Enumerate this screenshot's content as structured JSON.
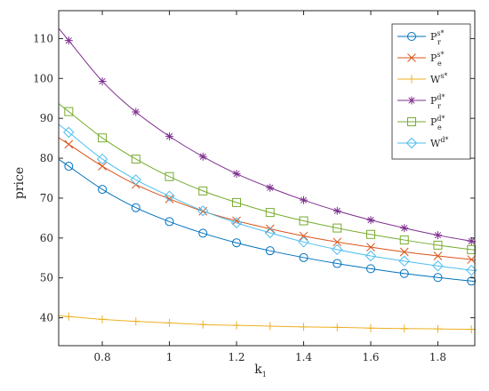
{
  "chart_data": {
    "type": "line",
    "title": "",
    "xlabel": "k",
    "xlabel_sub": "1",
    "ylabel": "price",
    "xlim": [
      0.67,
      1.91
    ],
    "ylim": [
      33,
      117
    ],
    "xticks": [
      "0.8",
      "1",
      "1.2",
      "1.4",
      "1.6",
      "1.8"
    ],
    "yticks": [
      "40",
      "50",
      "60",
      "70",
      "80",
      "90",
      "100",
      "110"
    ],
    "grid": false,
    "legend_position": "top-right",
    "x": [
      0.7,
      0.8,
      0.9,
      1.0,
      1.1,
      1.2,
      1.3,
      1.4,
      1.5,
      1.6,
      1.7,
      1.8,
      1.9
    ],
    "series": [
      {
        "name": "P_r^{s*}",
        "base": "P",
        "sub": "r",
        "sup": "s*",
        "color": "#0072BD",
        "marker": "circle",
        "values": [
          78.0,
          72.2,
          67.6,
          64.1,
          61.2,
          58.8,
          56.8,
          55.1,
          53.6,
          52.3,
          51.1,
          50.1,
          49.2
        ]
      },
      {
        "name": "P_e^{s*}",
        "base": "P",
        "sub": "e",
        "sup": "s*",
        "color": "#D95319",
        "marker": "x",
        "values": [
          83.5,
          78.0,
          73.4,
          69.8,
          66.7,
          64.3,
          62.3,
          60.5,
          59.0,
          57.7,
          56.5,
          55.5,
          54.6
        ]
      },
      {
        "name": "W^{s*}",
        "base": "W",
        "sub": "",
        "sup": "s*",
        "color": "#EDB120",
        "marker": "plus",
        "values": [
          40.3,
          39.6,
          39.1,
          38.7,
          38.3,
          38.1,
          37.9,
          37.7,
          37.6,
          37.4,
          37.3,
          37.2,
          37.1
        ]
      },
      {
        "name": "P_r^{d*}",
        "base": "P",
        "sub": "r",
        "sup": "d*",
        "color": "#7E2F8E",
        "marker": "asterisk",
        "values": [
          109.5,
          99.3,
          91.6,
          85.5,
          80.4,
          76.1,
          72.6,
          69.5,
          66.8,
          64.5,
          62.5,
          60.7,
          59.2
        ]
      },
      {
        "name": "P_e^{d*}",
        "base": "P",
        "sub": "e",
        "sup": "d*",
        "color": "#77AC30",
        "marker": "square",
        "values": [
          91.7,
          85.1,
          79.8,
          75.4,
          71.8,
          68.9,
          66.4,
          64.3,
          62.5,
          60.9,
          59.5,
          58.2,
          57.1
        ]
      },
      {
        "name": "W^{d*}",
        "base": "W",
        "sub": "",
        "sup": "d*",
        "color": "#4DBEEE",
        "marker": "diamond",
        "values": [
          86.5,
          79.8,
          74.6,
          70.5,
          66.8,
          63.8,
          61.3,
          59.0,
          57.1,
          55.5,
          54.2,
          53.0,
          51.9
        ]
      }
    ]
  }
}
